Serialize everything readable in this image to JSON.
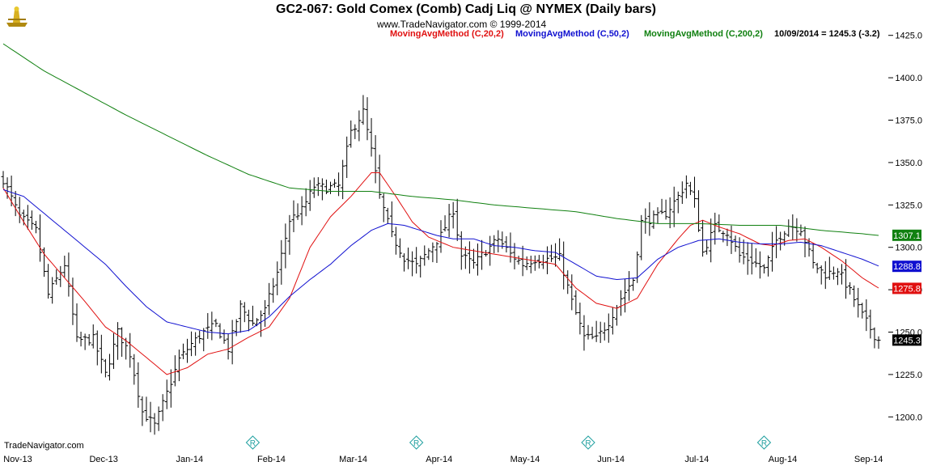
{
  "header": {
    "title": "GC2-067:  Gold Comex (Comb) Cadj Liq @ NYMEX  (Daily bars)",
    "copyright": "www.TradeNavigator.com © 1999-2014"
  },
  "legend": {
    "ma20": "MovingAvgMethod (C,20,2)",
    "ma50": "MovingAvgMethod (C,50,2)",
    "ma200": "MovingAvgMethod (C,200,2)",
    "last": "10/09/2014 = 1245.3 (-3.2)"
  },
  "footer": {
    "brand": "TradeNavigator.com"
  },
  "colors": {
    "bars": "#000000",
    "ma20": "#e01010",
    "ma50": "#1010d0",
    "ma200": "#108010",
    "roll_marker": "#20a0a0",
    "grid": "#dddddd"
  },
  "chart_data": {
    "type": "ohlc-bar",
    "title": "GC2-067:  Gold Comex (Comb) Cadj Liq @ NYMEX  (Daily bars)",
    "ylim": [
      1185,
      1435
    ],
    "y_ticks": [
      1200.0,
      1225.0,
      1250.0,
      1275.0,
      1300.0,
      1325.0,
      1350.0,
      1375.0,
      1400.0,
      1425.0
    ],
    "y_tick_labels": [
      "1200.0",
      "1225.0",
      "1250.0",
      "1275.0",
      "1300.0",
      "1325.0",
      "1350.0",
      "1375.0",
      "1400.0",
      "1425.0"
    ],
    "x_labels": [
      "Nov-13",
      "Dec-13",
      "Jan-14",
      "Feb-14",
      "Mar-14",
      "Apr-14",
      "May-14",
      "Jun-14",
      "Jul-14",
      "Aug-14",
      "Sep-14"
    ],
    "x_label_bar_index": [
      0,
      21,
      42,
      62,
      82,
      103,
      124,
      145,
      166,
      187,
      208
    ],
    "close_anchors": [
      [
        0,
        1340
      ],
      [
        4,
        1318
      ],
      [
        8,
        1310
      ],
      [
        11,
        1272
      ],
      [
        15,
        1290
      ],
      [
        18,
        1245
      ],
      [
        22,
        1246
      ],
      [
        25,
        1225
      ],
      [
        28,
        1250
      ],
      [
        31,
        1237
      ],
      [
        34,
        1203
      ],
      [
        37,
        1195
      ],
      [
        40,
        1214
      ],
      [
        43,
        1234
      ],
      [
        46,
        1243
      ],
      [
        49,
        1250
      ],
      [
        52,
        1254
      ],
      [
        55,
        1240
      ],
      [
        58,
        1265
      ],
      [
        61,
        1255
      ],
      [
        64,
        1263
      ],
      [
        67,
        1285
      ],
      [
        70,
        1316
      ],
      [
        73,
        1322
      ],
      [
        76,
        1336
      ],
      [
        79,
        1335
      ],
      [
        82,
        1336
      ],
      [
        85,
        1368
      ],
      [
        88,
        1380
      ],
      [
        90,
        1357
      ],
      [
        92,
        1330
      ],
      [
        95,
        1307
      ],
      [
        98,
        1294
      ],
      [
        101,
        1289
      ],
      [
        104,
        1298
      ],
      [
        107,
        1307
      ],
      [
        110,
        1322
      ],
      [
        112,
        1295
      ],
      [
        115,
        1290
      ],
      [
        118,
        1298
      ],
      [
        121,
        1305
      ],
      [
        124,
        1296
      ],
      [
        127,
        1290
      ],
      [
        130,
        1293
      ],
      [
        133,
        1293
      ],
      [
        136,
        1294
      ],
      [
        139,
        1268
      ],
      [
        142,
        1247
      ],
      [
        145,
        1246
      ],
      [
        148,
        1256
      ],
      [
        151,
        1270
      ],
      [
        154,
        1281
      ],
      [
        156,
        1315
      ],
      [
        159,
        1317
      ],
      [
        162,
        1320
      ],
      [
        165,
        1330
      ],
      [
        167,
        1338
      ],
      [
        169,
        1327
      ],
      [
        171,
        1297
      ],
      [
        174,
        1312
      ],
      [
        177,
        1309
      ],
      [
        180,
        1295
      ],
      [
        183,
        1292
      ],
      [
        186,
        1287
      ],
      [
        189,
        1304
      ],
      [
        192,
        1313
      ],
      [
        195,
        1311
      ],
      [
        198,
        1290
      ],
      [
        201,
        1284
      ],
      [
        204,
        1287
      ],
      [
        207,
        1274
      ],
      [
        210,
        1260
      ],
      [
        213,
        1248
      ],
      [
        214,
        1245.3
      ]
    ],
    "moving_averages": [
      {
        "name": "MovingAvgMethod (C,20,2)",
        "color": "#e01010",
        "values": [
          [
            0,
            1335
          ],
          [
            5,
            1315
          ],
          [
            10,
            1296
          ],
          [
            15,
            1282
          ],
          [
            20,
            1268
          ],
          [
            25,
            1253
          ],
          [
            30,
            1245
          ],
          [
            35,
            1235
          ],
          [
            40,
            1225
          ],
          [
            45,
            1229
          ],
          [
            50,
            1237
          ],
          [
            55,
            1240
          ],
          [
            60,
            1247
          ],
          [
            65,
            1253
          ],
          [
            70,
            1270
          ],
          [
            75,
            1300
          ],
          [
            80,
            1318
          ],
          [
            85,
            1330
          ],
          [
            90,
            1344
          ],
          [
            92,
            1344
          ],
          [
            96,
            1330
          ],
          [
            100,
            1315
          ],
          [
            104,
            1306
          ],
          [
            110,
            1300
          ],
          [
            115,
            1298
          ],
          [
            120,
            1296
          ],
          [
            125,
            1294
          ],
          [
            130,
            1292
          ],
          [
            135,
            1290
          ],
          [
            140,
            1276
          ],
          [
            145,
            1267
          ],
          [
            150,
            1264
          ],
          [
            155,
            1270
          ],
          [
            160,
            1290
          ],
          [
            165,
            1305
          ],
          [
            168,
            1313
          ],
          [
            171,
            1316
          ],
          [
            175,
            1312
          ],
          [
            180,
            1308
          ],
          [
            185,
            1302
          ],
          [
            188,
            1301
          ],
          [
            192,
            1304
          ],
          [
            196,
            1305
          ],
          [
            200,
            1300
          ],
          [
            205,
            1292
          ],
          [
            210,
            1282
          ],
          [
            214,
            1276
          ]
        ]
      },
      {
        "name": "MovingAvgMethod (C,50,2)",
        "color": "#1010d0",
        "values": [
          [
            0,
            1334
          ],
          [
            5,
            1330
          ],
          [
            10,
            1320
          ],
          [
            15,
            1310
          ],
          [
            20,
            1300
          ],
          [
            25,
            1290
          ],
          [
            30,
            1277
          ],
          [
            35,
            1265
          ],
          [
            40,
            1256
          ],
          [
            45,
            1253
          ],
          [
            50,
            1250
          ],
          [
            55,
            1249
          ],
          [
            60,
            1251
          ],
          [
            65,
            1259
          ],
          [
            70,
            1271
          ],
          [
            75,
            1281
          ],
          [
            80,
            1290
          ],
          [
            85,
            1301
          ],
          [
            90,
            1310
          ],
          [
            94,
            1314
          ],
          [
            98,
            1313
          ],
          [
            102,
            1310
          ],
          [
            106,
            1307
          ],
          [
            110,
            1305
          ],
          [
            115,
            1305
          ],
          [
            120,
            1301
          ],
          [
            125,
            1300
          ],
          [
            130,
            1298
          ],
          [
            135,
            1297
          ],
          [
            140,
            1290
          ],
          [
            145,
            1283
          ],
          [
            150,
            1281
          ],
          [
            155,
            1282
          ],
          [
            160,
            1293
          ],
          [
            165,
            1300
          ],
          [
            170,
            1304
          ],
          [
            175,
            1305
          ],
          [
            180,
            1303
          ],
          [
            185,
            1302
          ],
          [
            190,
            1302
          ],
          [
            195,
            1303
          ],
          [
            200,
            1301
          ],
          [
            205,
            1297
          ],
          [
            210,
            1293
          ],
          [
            214,
            1289
          ]
        ]
      },
      {
        "name": "MovingAvgMethod (C,200,2)",
        "color": "#108010",
        "values": [
          [
            0,
            1420
          ],
          [
            10,
            1404
          ],
          [
            20,
            1391
          ],
          [
            30,
            1378
          ],
          [
            40,
            1366
          ],
          [
            50,
            1354
          ],
          [
            60,
            1343
          ],
          [
            70,
            1335
          ],
          [
            80,
            1333
          ],
          [
            90,
            1333
          ],
          [
            100,
            1330
          ],
          [
            110,
            1328
          ],
          [
            120,
            1325
          ],
          [
            130,
            1323
          ],
          [
            140,
            1321
          ],
          [
            150,
            1317
          ],
          [
            160,
            1314
          ],
          [
            170,
            1314
          ],
          [
            180,
            1313
          ],
          [
            190,
            1313
          ],
          [
            200,
            1310
          ],
          [
            210,
            1308
          ],
          [
            214,
            1307
          ]
        ]
      }
    ],
    "last_labels": [
      {
        "value": 1307.1,
        "text": "1307.1",
        "color": "#108010"
      },
      {
        "value": 1288.8,
        "text": "1288.8",
        "color": "#1010d0"
      },
      {
        "value": 1275.8,
        "text": "1275.8",
        "color": "#e01010"
      },
      {
        "value": 1245.3,
        "text": "1245.3",
        "color": "#000000"
      }
    ],
    "roll_markers": {
      "label": "R",
      "bar_index": [
        61,
        101,
        143,
        186
      ]
    },
    "grid": false
  }
}
